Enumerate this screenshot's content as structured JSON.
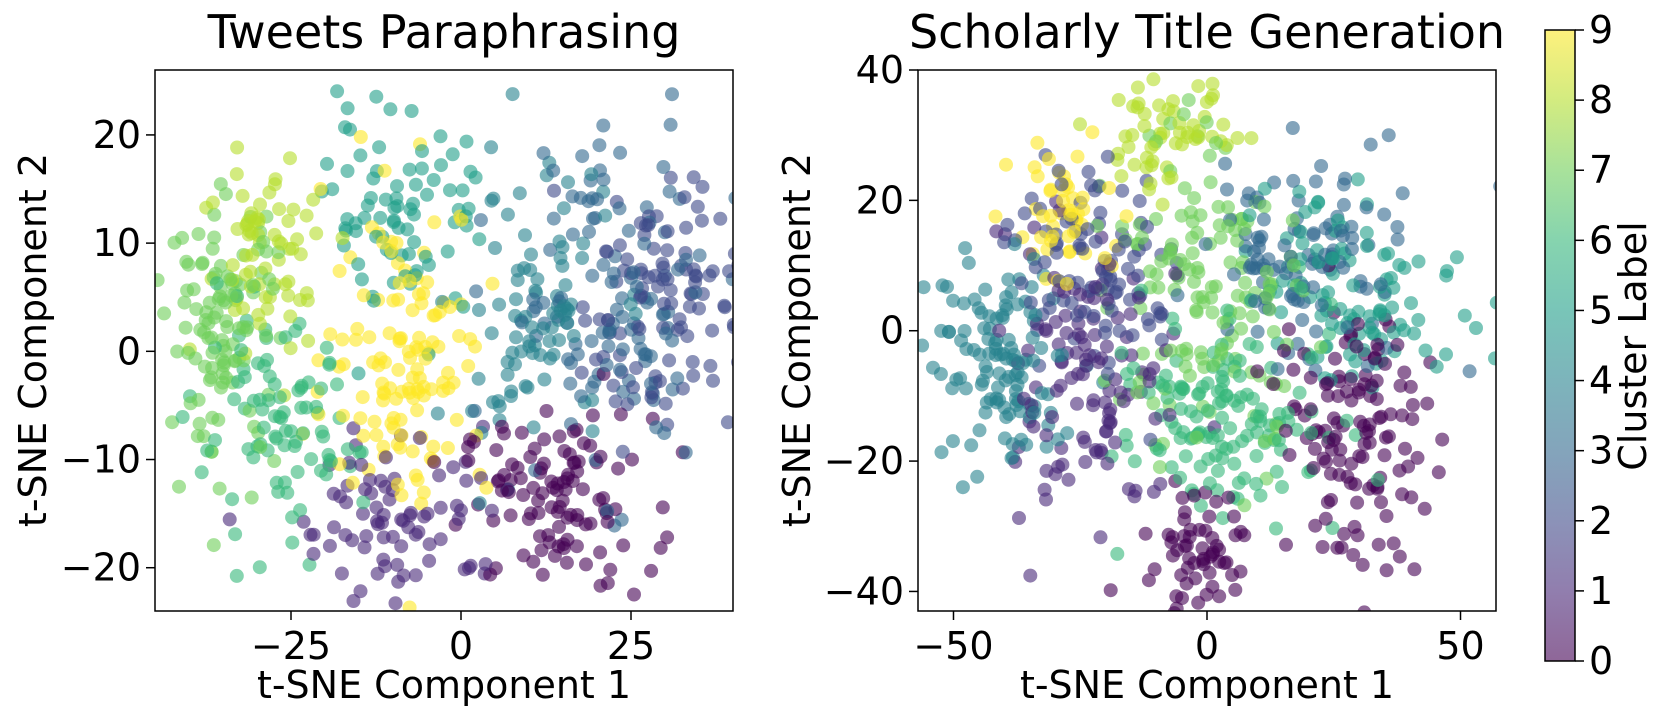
{
  "chart_data": [
    {
      "type": "scatter",
      "title": "Tweets Paraphrasing",
      "xlabel": "t-SNE Component 1",
      "ylabel": "t-SNE Component 2",
      "xlim": [
        -45,
        40
      ],
      "ylim": [
        -24,
        26
      ],
      "xticks": [
        -25,
        0,
        25
      ],
      "xtick_labels": [
        "−25",
        "0",
        "25"
      ],
      "yticks": [
        -20,
        -10,
        0,
        10,
        20
      ],
      "ytick_labels": [
        "−20",
        "−10",
        "0",
        "10",
        "20"
      ],
      "grid": false,
      "point_alpha": 0.6,
      "clusters": [
        {
          "label": 0,
          "cx": 14,
          "cy": -14,
          "sx": 7,
          "sy": 4,
          "n": 110
        },
        {
          "label": 1,
          "cx": -8,
          "cy": -15,
          "sx": 8,
          "sy": 4,
          "n": 80
        },
        {
          "label": 2,
          "cx": 30,
          "cy": 5,
          "sx": 6,
          "sy": 6,
          "n": 110
        },
        {
          "label": 3,
          "cx": 22,
          "cy": 5,
          "sx": 8,
          "sy": 8,
          "n": 120
        },
        {
          "label": 4,
          "cx": 10,
          "cy": 3,
          "sx": 6,
          "sy": 7,
          "n": 90
        },
        {
          "label": 5,
          "cx": -8,
          "cy": 13,
          "sx": 6,
          "sy": 5,
          "n": 80
        },
        {
          "label": 6,
          "cx": -27,
          "cy": -8,
          "sx": 6,
          "sy": 5,
          "n": 90
        },
        {
          "label": 7,
          "cx": -35,
          "cy": 2,
          "sx": 4,
          "sy": 6,
          "n": 110
        },
        {
          "label": 8,
          "cx": -28,
          "cy": 9,
          "sx": 5,
          "sy": 5,
          "n": 70
        },
        {
          "label": 9,
          "cx": -8,
          "cy": 0,
          "sx": 6,
          "sy": 7,
          "n": 130
        }
      ]
    },
    {
      "type": "scatter",
      "title": "Scholarly Title Generation",
      "xlabel": "t-SNE Component 1",
      "ylabel": "t-SNE Component 2",
      "xlim": [
        -57,
        57
      ],
      "ylim": [
        -43,
        40
      ],
      "xticks": [
        -50,
        0,
        50
      ],
      "xtick_labels": [
        "−50",
        "0",
        "50"
      ],
      "yticks": [
        -40,
        -20,
        0,
        20,
        40
      ],
      "ytick_labels": [
        "−40",
        "−20",
        "0",
        "20",
        "40"
      ],
      "grid": false,
      "point_alpha": 0.6,
      "clusters": [
        {
          "label": 0,
          "cx": 30,
          "cy": -15,
          "sx": 8,
          "sy": 10,
          "n": 130
        },
        {
          "label": 0,
          "cx": -2,
          "cy": -33,
          "sx": 5,
          "sy": 4,
          "n": 60
        },
        {
          "label": 1,
          "cx": -25,
          "cy": -8,
          "sx": 8,
          "sy": 12,
          "n": 120
        },
        {
          "label": 2,
          "cx": -20,
          "cy": 8,
          "sx": 8,
          "sy": 8,
          "n": 100
        },
        {
          "label": 3,
          "cx": 20,
          "cy": 12,
          "sx": 10,
          "sy": 8,
          "n": 110
        },
        {
          "label": 4,
          "cx": -40,
          "cy": -5,
          "sx": 7,
          "sy": 8,
          "n": 120
        },
        {
          "label": 5,
          "cx": 30,
          "cy": 5,
          "sx": 10,
          "sy": 8,
          "n": 100
        },
        {
          "label": 6,
          "cx": 5,
          "cy": -12,
          "sx": 10,
          "sy": 8,
          "n": 140
        },
        {
          "label": 7,
          "cx": 0,
          "cy": 5,
          "sx": 10,
          "sy": 12,
          "n": 150
        },
        {
          "label": 8,
          "cx": -8,
          "cy": 31,
          "sx": 6,
          "sy": 4,
          "n": 60
        },
        {
          "label": 9,
          "cx": -30,
          "cy": 18,
          "sx": 5,
          "sy": 5,
          "n": 50
        }
      ]
    }
  ],
  "colorbar": {
    "label": "Cluster Label",
    "min": 0,
    "max": 9,
    "ticks": [
      0,
      1,
      2,
      3,
      4,
      5,
      6,
      7,
      8,
      9
    ],
    "tick_labels": [
      "0",
      "1",
      "2",
      "3",
      "4",
      "5",
      "6",
      "7",
      "8",
      "9"
    ],
    "colormap": "viridis",
    "colors": [
      "#440154",
      "#482878",
      "#3e4a89",
      "#31688e",
      "#26828e",
      "#1f9e89",
      "#35b779",
      "#6ece58",
      "#b5de2b",
      "#fde725"
    ]
  }
}
